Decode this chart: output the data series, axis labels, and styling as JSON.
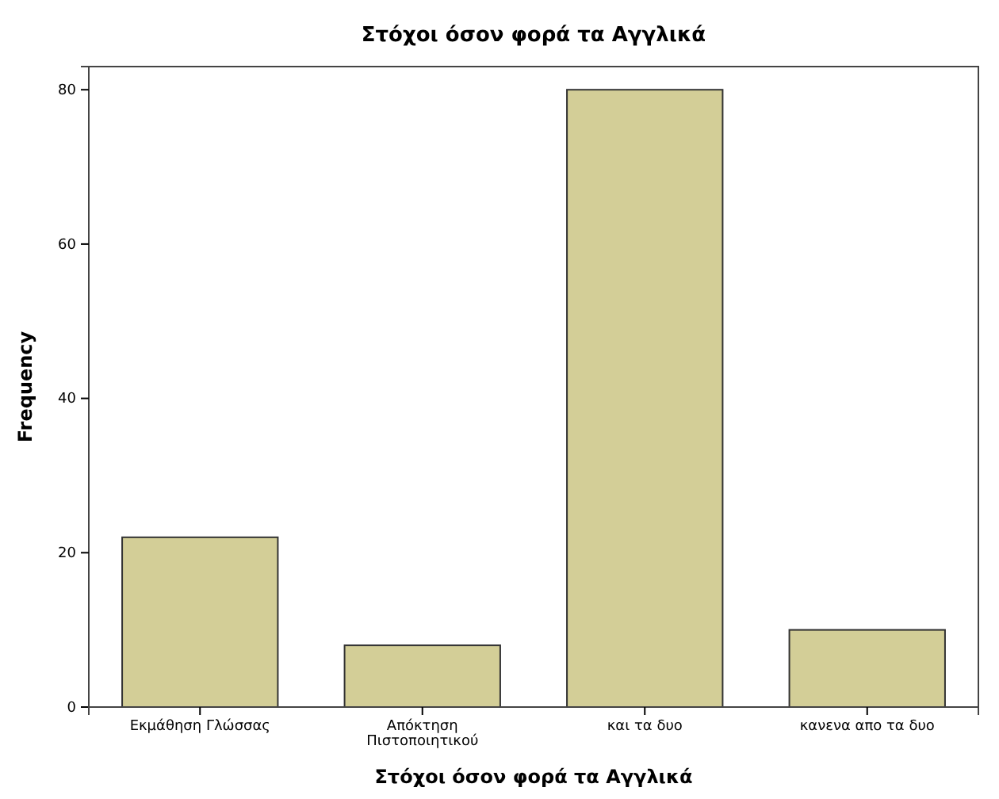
{
  "chart_data": {
    "type": "bar",
    "title": "Στόχοι όσον φορά τα Αγγλικά",
    "xlabel": "Στόχοι όσον φορά τα Αγγλικά",
    "ylabel": "Frequency",
    "categories": [
      "Εκμάθηση Γλώσσας",
      "Απόκτηση Πιστοποιητικού",
      "και τα δυο",
      "κανενα απο τα δυο"
    ],
    "values": [
      22,
      8,
      80,
      10
    ],
    "color": "#d3ce97",
    "ylim": [
      0,
      83
    ],
    "yticks": [
      0,
      20,
      40,
      60,
      80
    ],
    "grid": false
  }
}
